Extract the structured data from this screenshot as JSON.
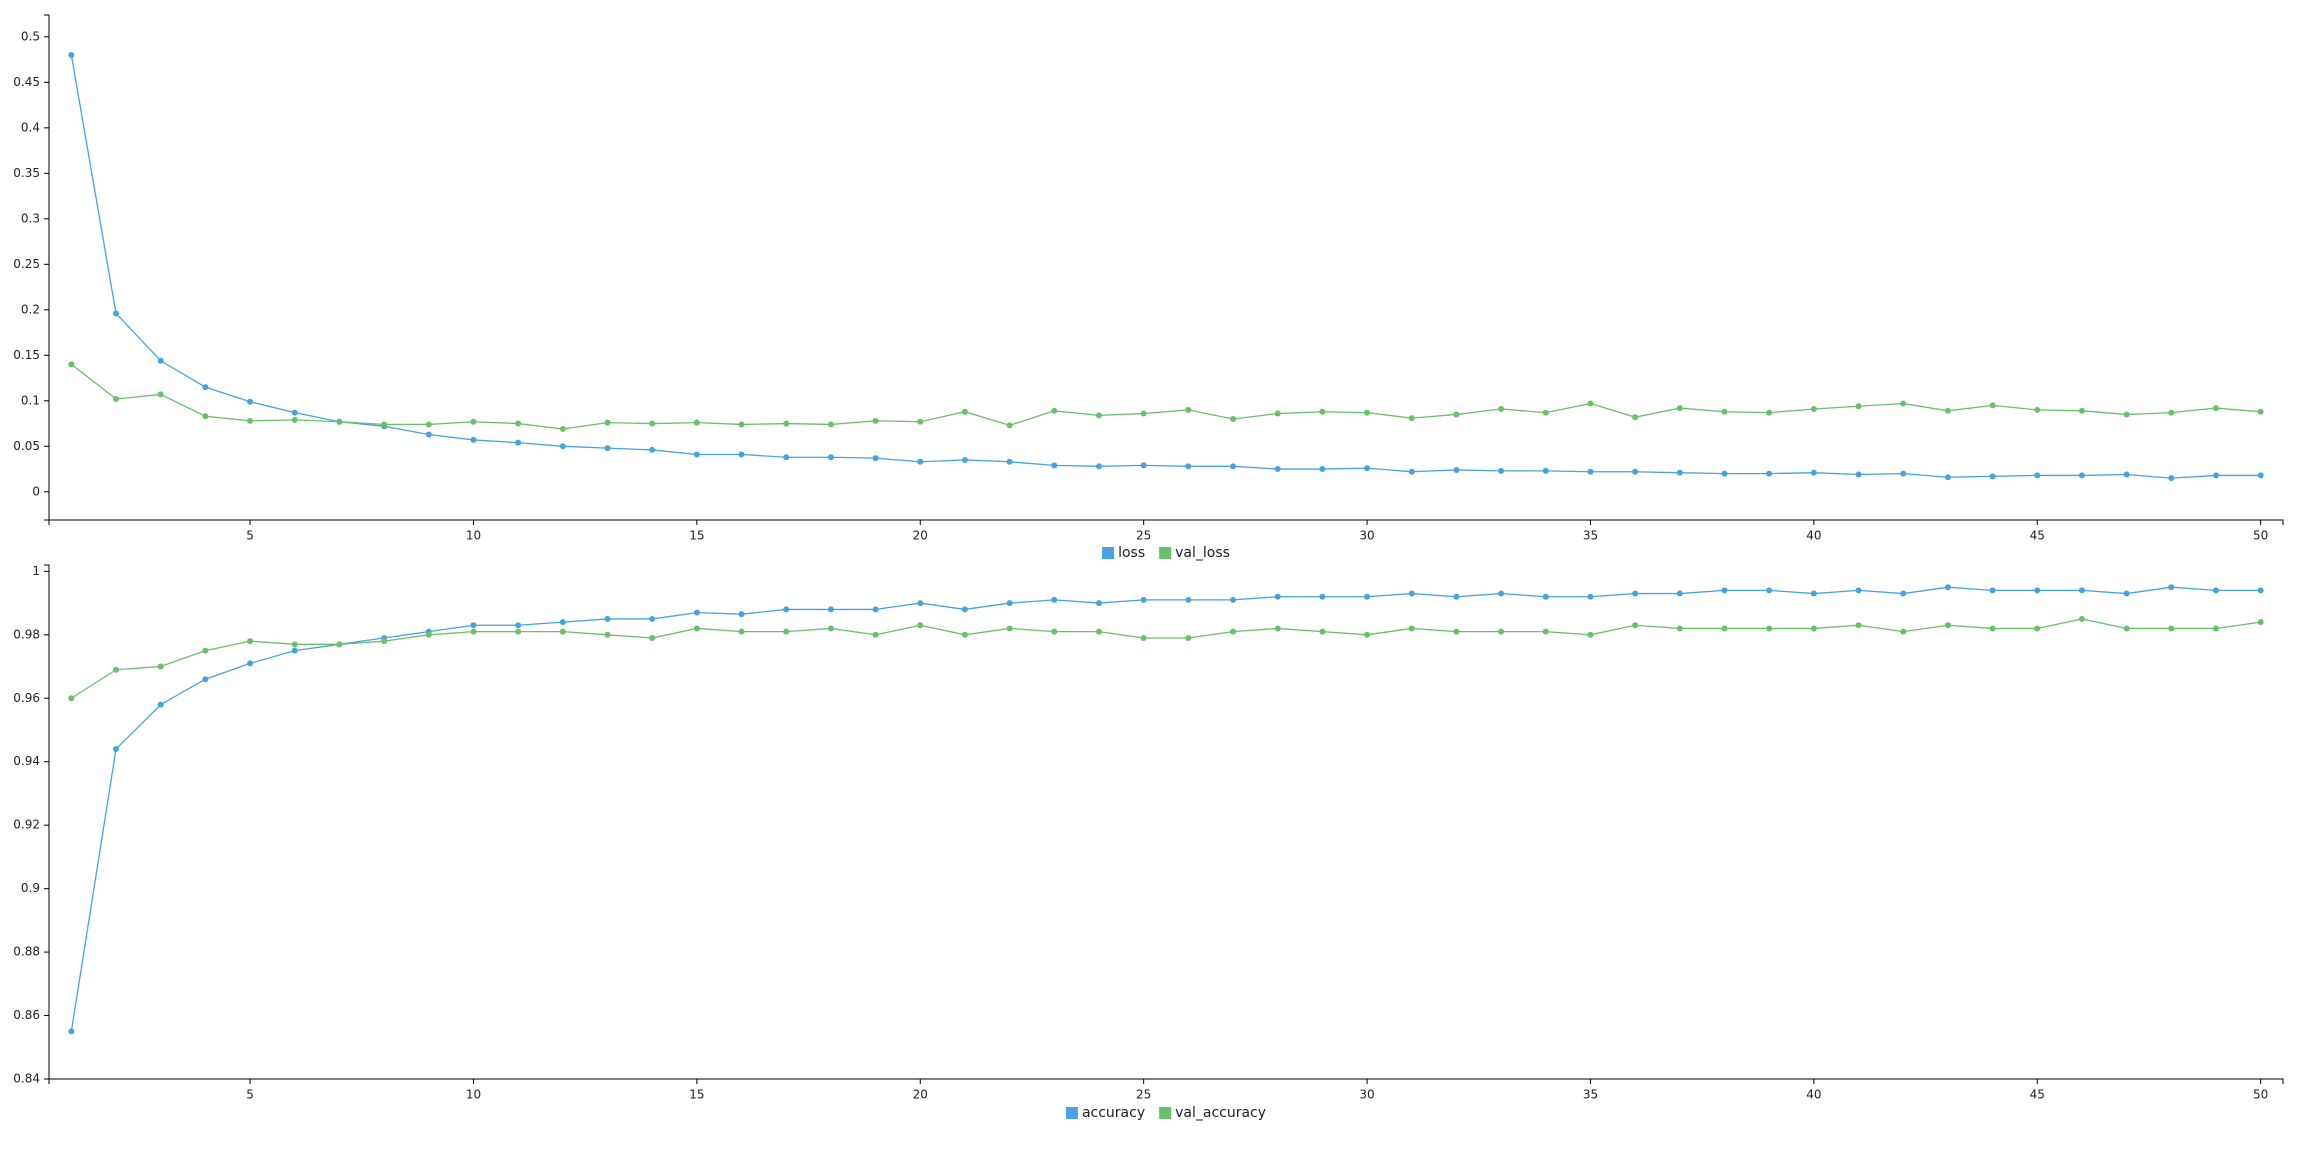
{
  "chart_data": [
    {
      "type": "line",
      "x": [
        1,
        2,
        3,
        4,
        5,
        6,
        7,
        8,
        9,
        10,
        11,
        12,
        13,
        14,
        15,
        16,
        17,
        18,
        19,
        20,
        21,
        22,
        23,
        24,
        25,
        26,
        27,
        28,
        29,
        30,
        31,
        32,
        33,
        34,
        35,
        36,
        37,
        38,
        39,
        40,
        41,
        42,
        43,
        44,
        45,
        46,
        47,
        48,
        49,
        50
      ],
      "series": [
        {
          "name": "loss",
          "color": "#48a2e0",
          "values": [
            0.48,
            0.196,
            0.144,
            0.115,
            0.099,
            0.087,
            0.077,
            0.072,
            0.063,
            0.057,
            0.054,
            0.05,
            0.048,
            0.046,
            0.041,
            0.041,
            0.038,
            0.038,
            0.037,
            0.033,
            0.035,
            0.033,
            0.029,
            0.028,
            0.029,
            0.028,
            0.028,
            0.025,
            0.025,
            0.026,
            0.022,
            0.024,
            0.023,
            0.023,
            0.022,
            0.022,
            0.021,
            0.02,
            0.02,
            0.021,
            0.019,
            0.02,
            0.016,
            0.017,
            0.018,
            0.018,
            0.019,
            0.015,
            0.018,
            0.018
          ]
        },
        {
          "name": "val_loss",
          "color": "#6cbf6a",
          "values": [
            0.14,
            0.102,
            0.107,
            0.083,
            0.078,
            0.079,
            0.077,
            0.074,
            0.074,
            0.077,
            0.075,
            0.069,
            0.076,
            0.075,
            0.076,
            0.074,
            0.075,
            0.074,
            0.078,
            0.077,
            0.088,
            0.073,
            0.089,
            0.084,
            0.086,
            0.09,
            0.08,
            0.086,
            0.088,
            0.087,
            0.081,
            0.085,
            0.091,
            0.087,
            0.097,
            0.082,
            0.092,
            0.088,
            0.087,
            0.091,
            0.094,
            0.097,
            0.089,
            0.095,
            0.09,
            0.089,
            0.085,
            0.087,
            0.092,
            0.088
          ]
        }
      ],
      "xlim": [
        0.5,
        50.5
      ],
      "ylim": [
        -0.031,
        0.524
      ],
      "xticks": [
        5,
        10,
        15,
        20,
        25,
        30,
        35,
        40,
        45,
        50
      ],
      "yticks": [
        0,
        0.05,
        0.1,
        0.15,
        0.2,
        0.25,
        0.3,
        0.35,
        0.4,
        0.45,
        0.5
      ],
      "legend": "bottom"
    },
    {
      "type": "line",
      "x": [
        1,
        2,
        3,
        4,
        5,
        6,
        7,
        8,
        9,
        10,
        11,
        12,
        13,
        14,
        15,
        16,
        17,
        18,
        19,
        20,
        21,
        22,
        23,
        24,
        25,
        26,
        27,
        28,
        29,
        30,
        31,
        32,
        33,
        34,
        35,
        36,
        37,
        38,
        39,
        40,
        41,
        42,
        43,
        44,
        45,
        46,
        47,
        48,
        49,
        50
      ],
      "series": [
        {
          "name": "accuracy",
          "color": "#48a2e0",
          "values": [
            0.855,
            0.944,
            0.958,
            0.966,
            0.971,
            0.975,
            0.977,
            0.979,
            0.981,
            0.983,
            0.983,
            0.984,
            0.985,
            0.985,
            0.987,
            0.9865,
            0.988,
            0.988,
            0.988,
            0.99,
            0.988,
            0.99,
            0.991,
            0.99,
            0.991,
            0.991,
            0.991,
            0.992,
            0.992,
            0.992,
            0.993,
            0.992,
            0.993,
            0.992,
            0.992,
            0.993,
            0.993,
            0.994,
            0.994,
            0.993,
            0.994,
            0.993,
            0.995,
            0.994,
            0.994,
            0.994,
            0.993,
            0.995,
            0.994,
            0.994
          ]
        },
        {
          "name": "val_accuracy",
          "color": "#6cbf6a",
          "values": [
            0.96,
            0.969,
            0.97,
            0.975,
            0.978,
            0.977,
            0.977,
            0.978,
            0.98,
            0.981,
            0.981,
            0.981,
            0.98,
            0.979,
            0.982,
            0.981,
            0.981,
            0.982,
            0.98,
            0.983,
            0.98,
            0.982,
            0.981,
            0.981,
            0.979,
            0.979,
            0.981,
            0.982,
            0.981,
            0.98,
            0.982,
            0.981,
            0.981,
            0.981,
            0.98,
            0.983,
            0.982,
            0.982,
            0.982,
            0.982,
            0.983,
            0.981,
            0.983,
            0.982,
            0.982,
            0.985,
            0.982,
            0.982,
            0.982,
            0.984
          ]
        }
      ],
      "xlim": [
        0.5,
        50.5
      ],
      "ylim": [
        0.84,
        1.002
      ],
      "xticks": [
        5,
        10,
        15,
        20,
        25,
        30,
        35,
        40,
        45,
        50
      ],
      "yticks": [
        0.84,
        0.86,
        0.88,
        0.9,
        0.92,
        0.94,
        0.96,
        0.98,
        1
      ],
      "legend": "bottom"
    }
  ]
}
